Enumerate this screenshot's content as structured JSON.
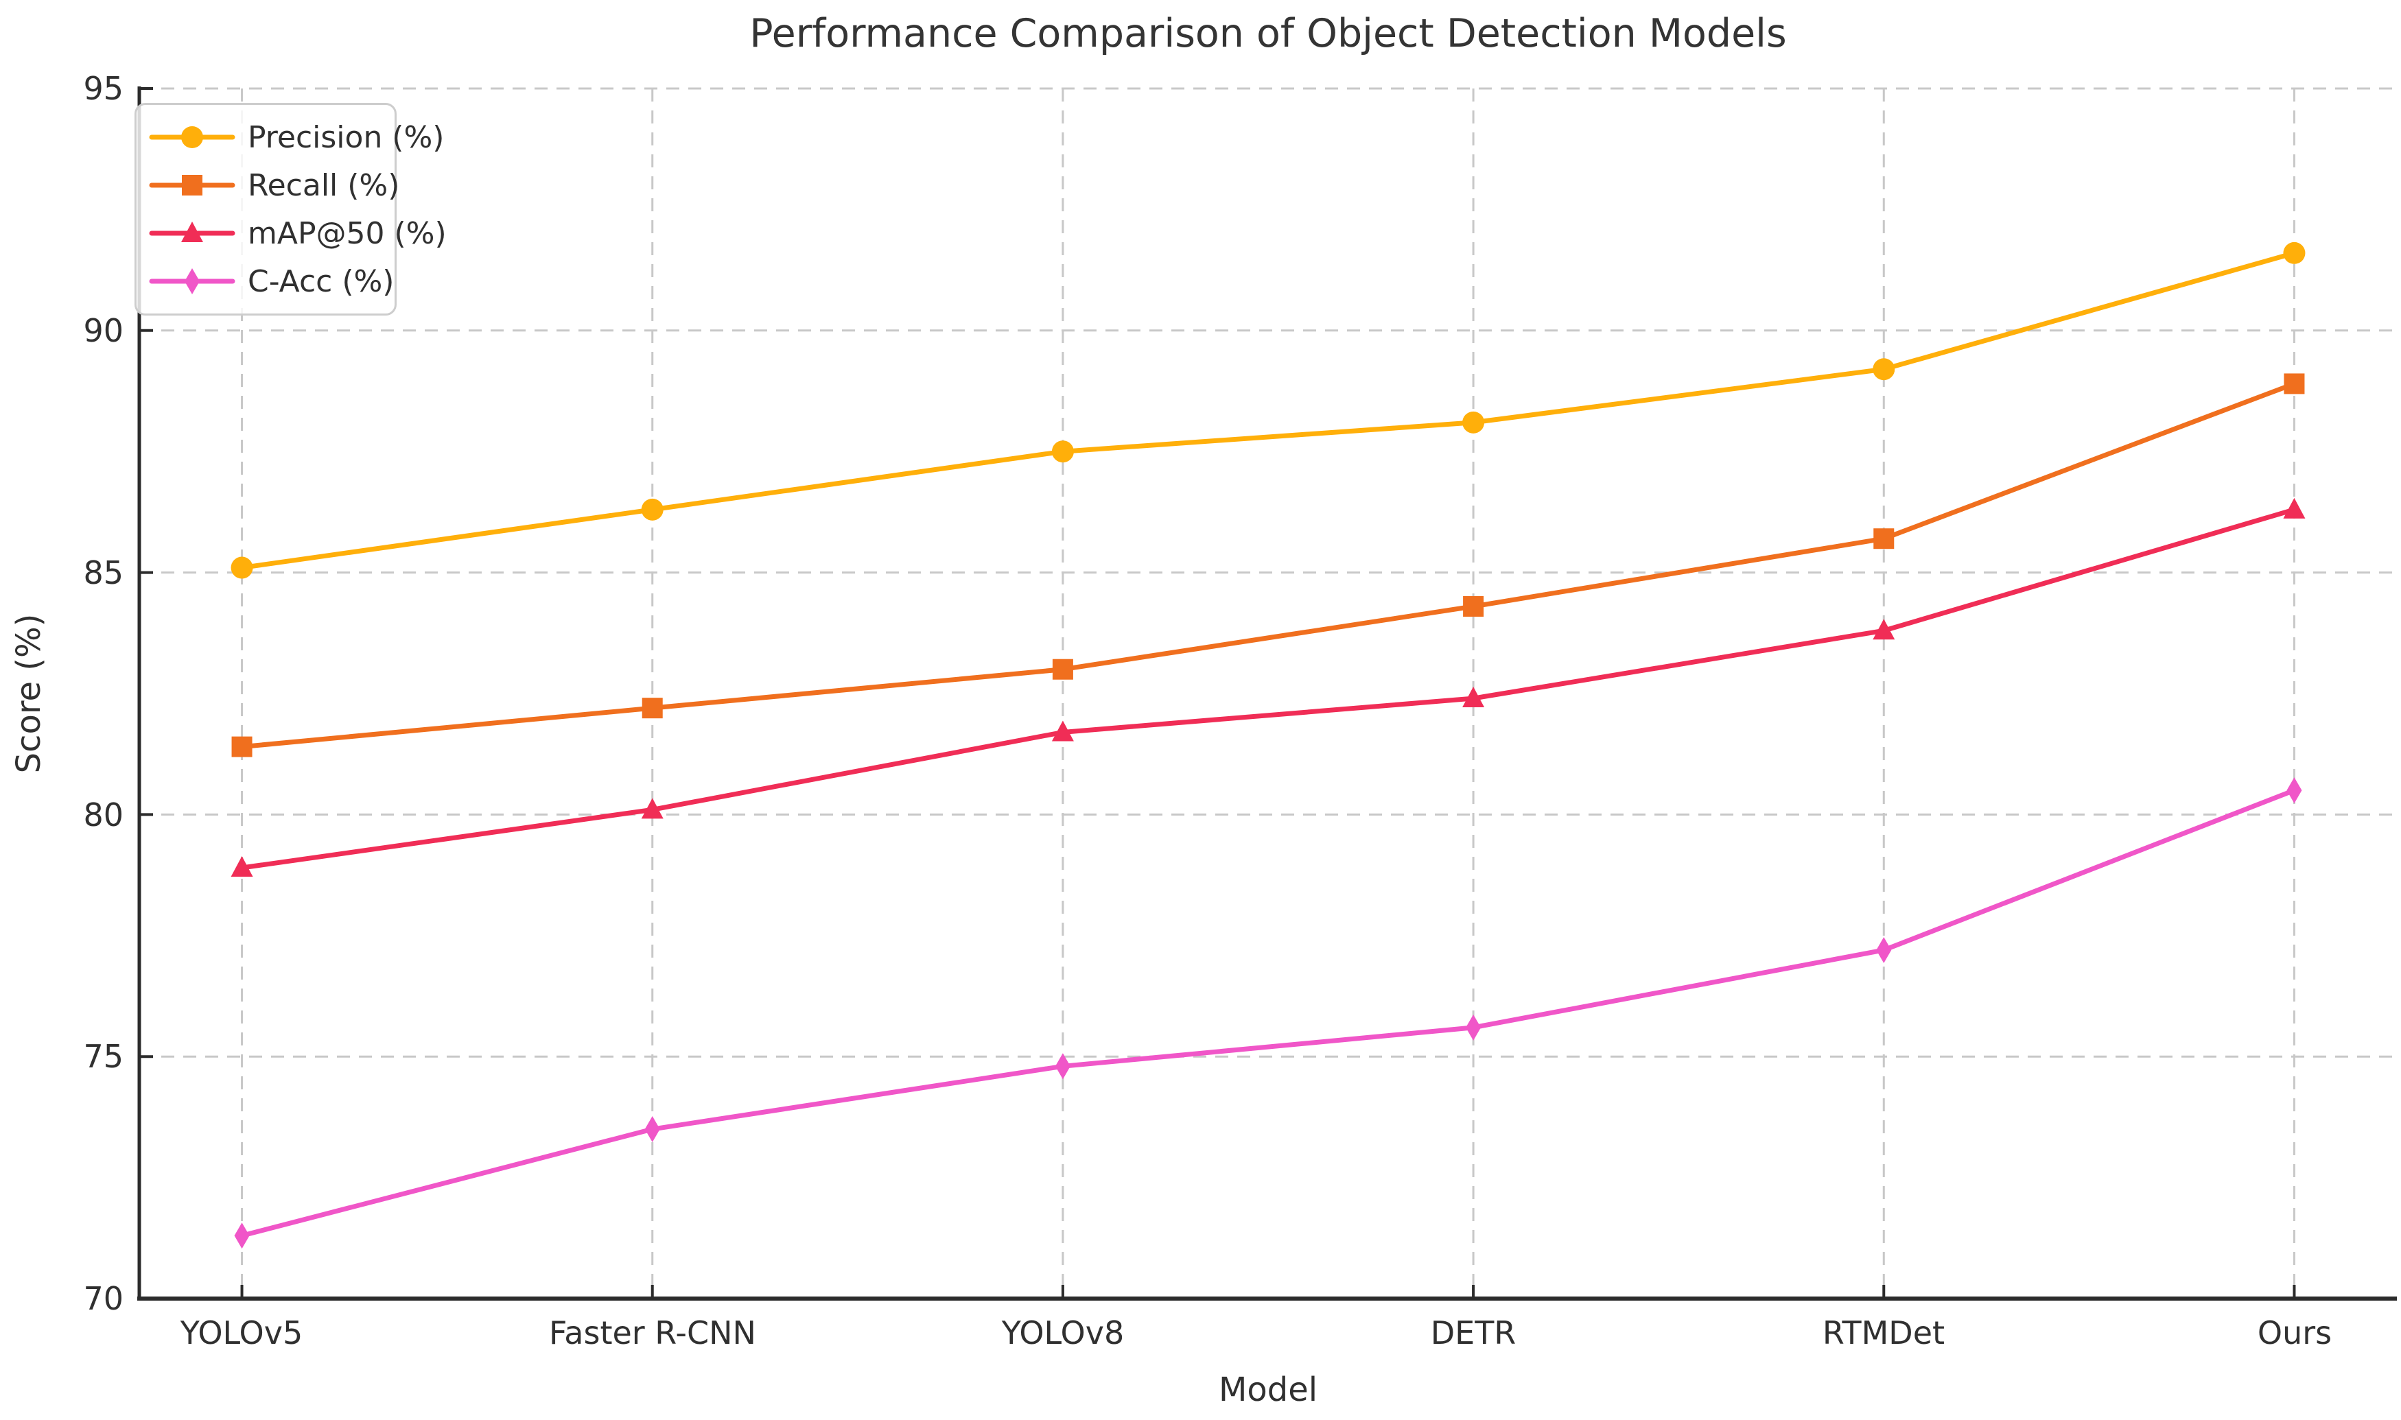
{
  "figure": {
    "background": "#ffffff",
    "text_color": "#303030",
    "axis_color": "#2b2b2b",
    "grid_color": "#c8c8c8",
    "legend_border_color": "#cdcdcd"
  },
  "chart_data": {
    "type": "line",
    "title": "Performance Comparison of Object Detection Models",
    "xlabel": "Model",
    "ylabel": "Score (%)",
    "categories": [
      "YOLOv5",
      "Faster R-CNN",
      "YOLOv8",
      "DETR",
      "RTMDet",
      "Ours"
    ],
    "series": [
      {
        "name": "Precision (%)",
        "marker": "circle",
        "color": "#FFAF0A",
        "values": [
          85.1,
          86.3,
          87.5,
          88.1,
          89.2,
          91.6
        ]
      },
      {
        "name": "Recall (%)",
        "marker": "square",
        "color": "#F06F1E",
        "values": [
          81.4,
          82.2,
          83.0,
          84.3,
          85.7,
          88.9
        ]
      },
      {
        "name": "mAP@50 (%)",
        "marker": "triangle-up",
        "color": "#F02D56",
        "values": [
          78.9,
          80.1,
          81.7,
          82.4,
          83.8,
          86.3
        ]
      },
      {
        "name": "C-Acc (%)",
        "marker": "diamond",
        "color": "#F056C8",
        "values": [
          71.3,
          73.5,
          74.8,
          75.6,
          77.2,
          80.5
        ]
      }
    ],
    "ylim": [
      70,
      95
    ],
    "yticks": [
      95,
      90,
      85,
      80,
      75,
      70
    ],
    "ytick_labels": [
      "95",
      "90",
      "85",
      "80",
      "75",
      "70"
    ],
    "grid": "dashed",
    "legend_position": "upper-left"
  }
}
